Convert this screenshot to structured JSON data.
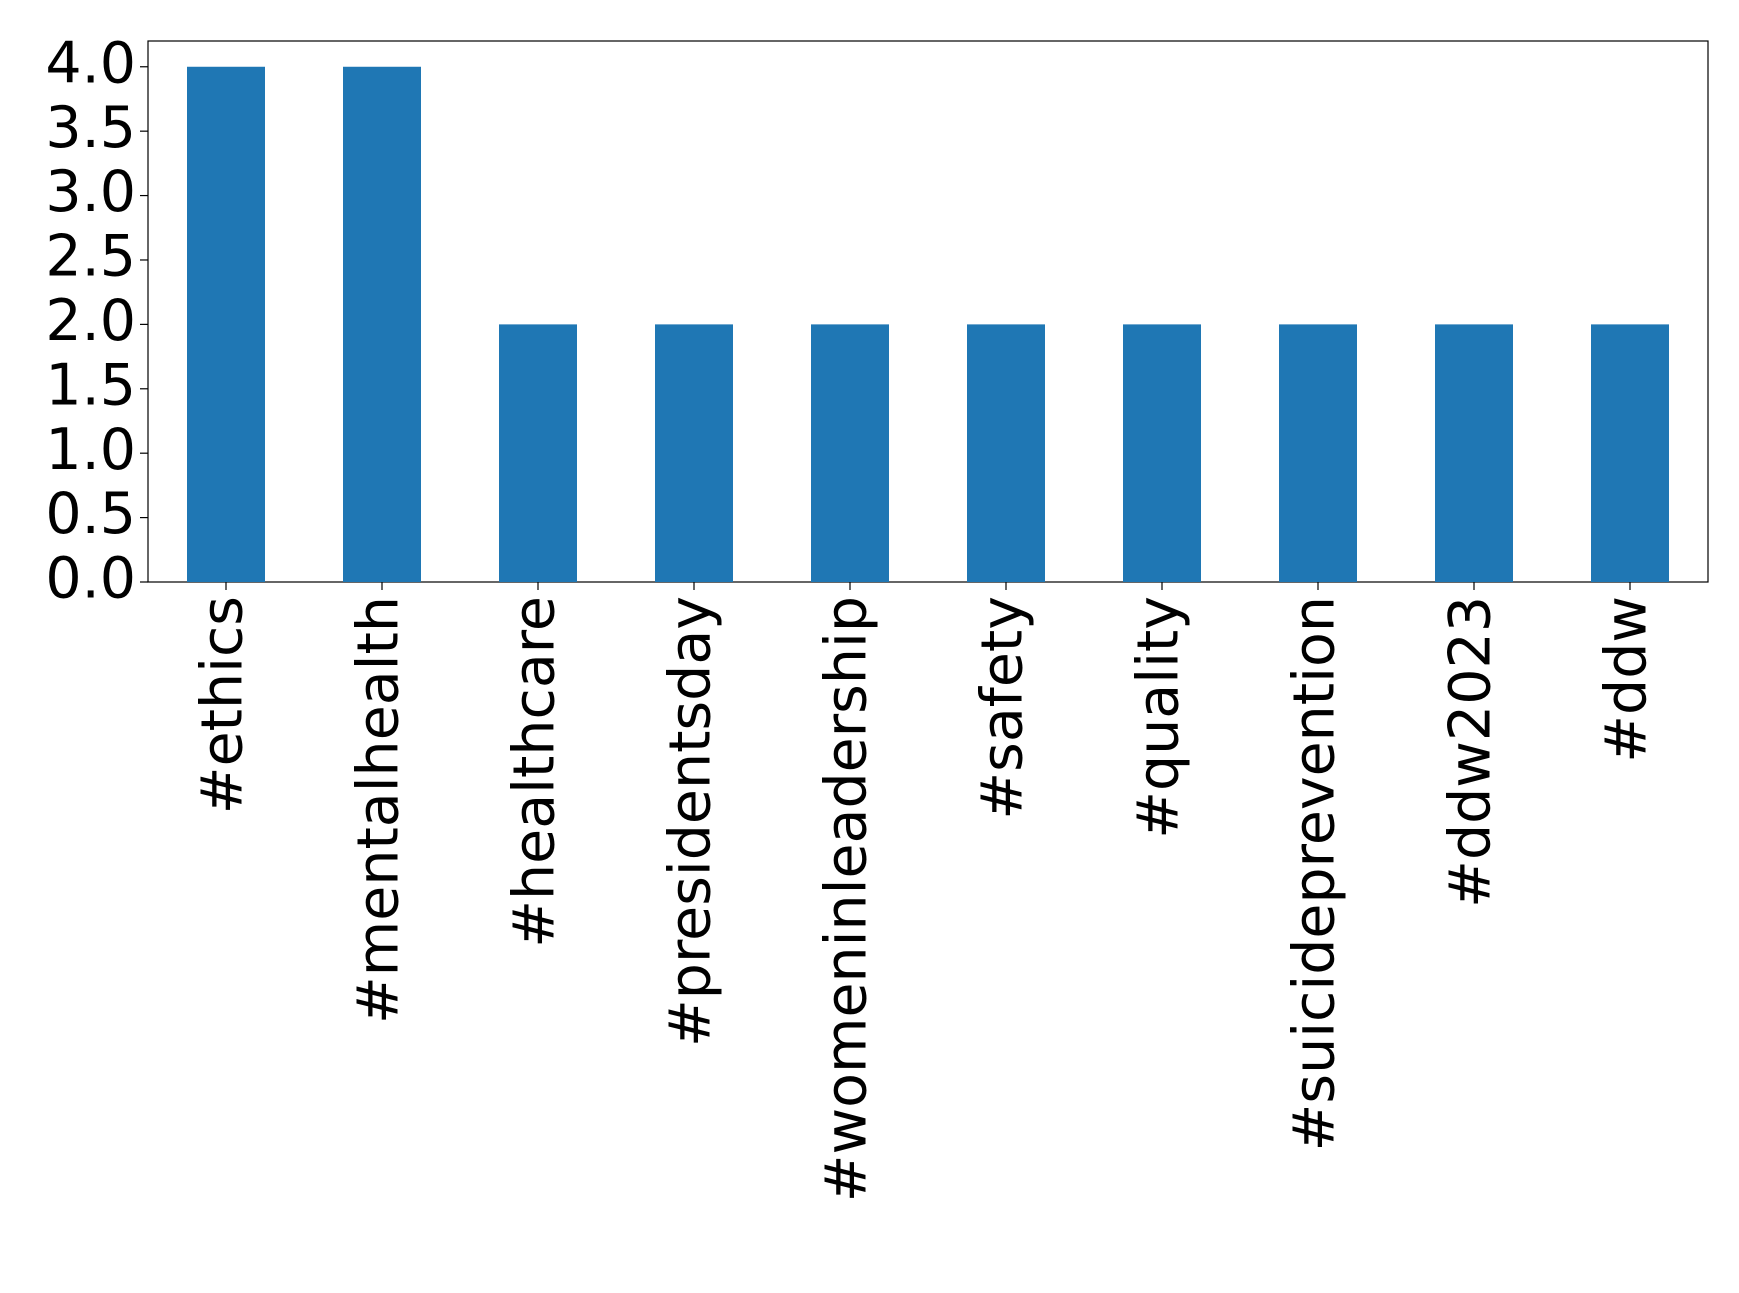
{
  "chart_data": {
    "type": "bar",
    "categories": [
      "#ethics",
      "#mentalhealth",
      "#healthcare",
      "#presidentsday",
      "#womeninleadership",
      "#safety",
      "#quality",
      "#suicideprevention",
      "#ddw2023",
      "#ddw"
    ],
    "values": [
      4,
      4,
      2,
      2,
      2,
      2,
      2,
      2,
      2,
      2
    ],
    "color": "#1f77b4",
    "ylim": [
      0,
      4.2
    ],
    "yticks": [
      {
        "value": 0,
        "label": "0.0"
      },
      {
        "value": 0.5,
        "label": "0.5"
      },
      {
        "value": 1,
        "label": "1.0"
      },
      {
        "value": 1.5,
        "label": "1.5"
      },
      {
        "value": 2,
        "label": "2.0"
      },
      {
        "value": 2.5,
        "label": "2.5"
      },
      {
        "value": 3,
        "label": "3.0"
      },
      {
        "value": 3.5,
        "label": "3.5"
      },
      {
        "value": 4,
        "label": "4.0"
      }
    ],
    "grid": false
  }
}
